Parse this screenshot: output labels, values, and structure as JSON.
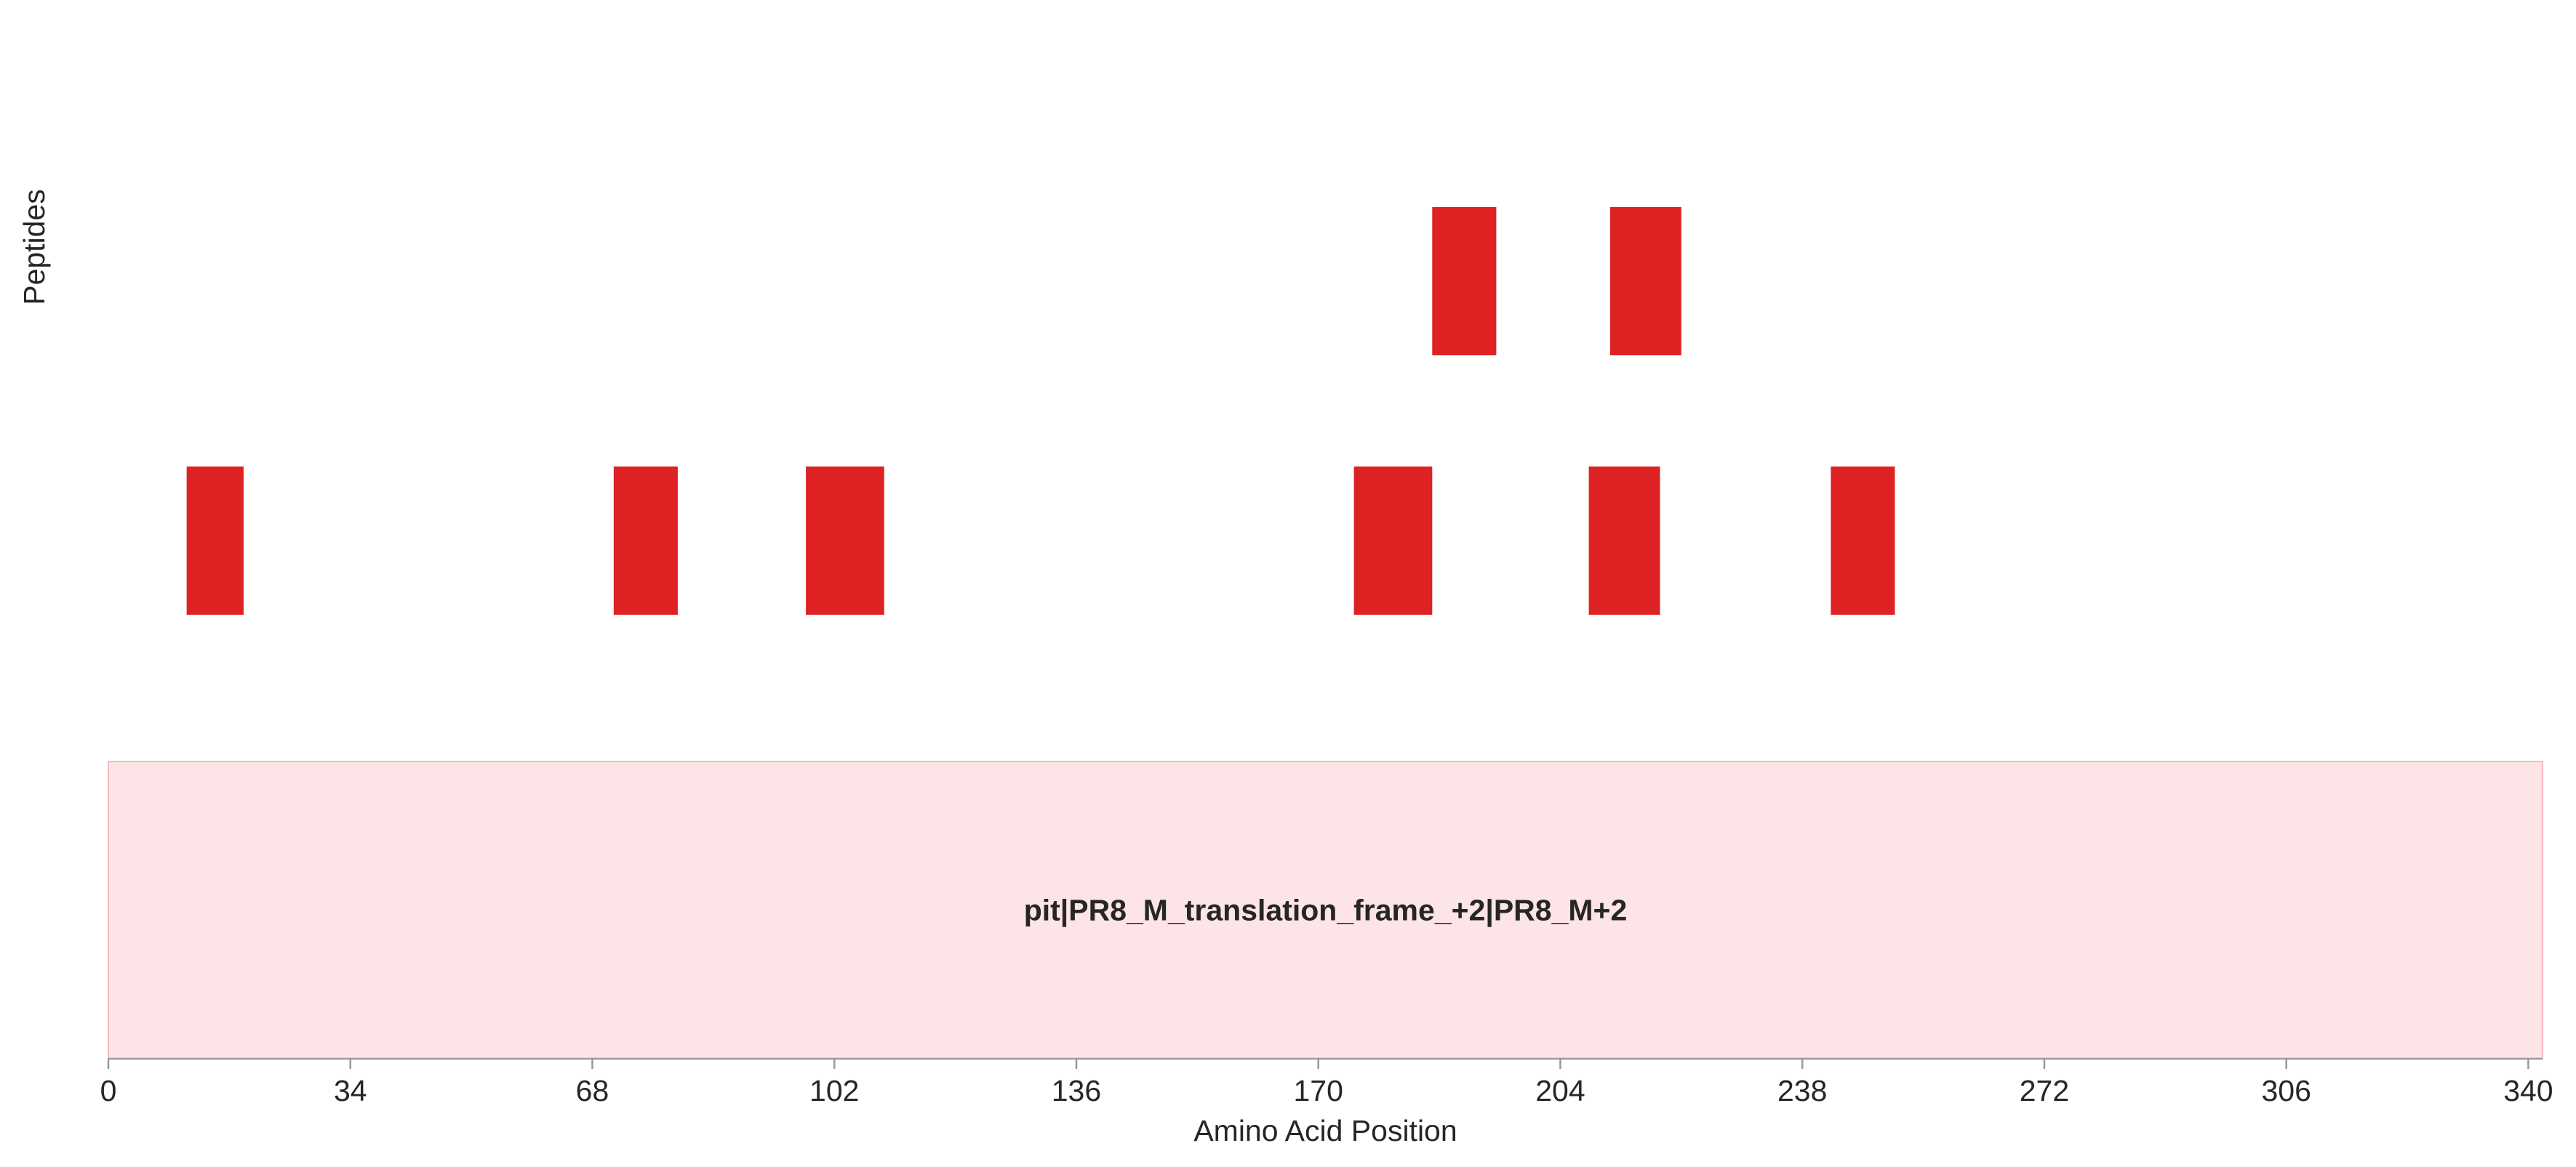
{
  "colors": {
    "peptide": "#de2224",
    "protein_fill": "#fde4e6",
    "protein_edge": "#f7b9bf",
    "axis": "#999999",
    "text": "#262626"
  },
  "chart_data": {
    "type": "bar",
    "orientation": "horizontal-intervals",
    "xlabel": "Amino Acid Position",
    "ylabel": "Peptides",
    "xlim": [
      0,
      342
    ],
    "xticks": [
      0,
      34,
      68,
      102,
      136,
      170,
      204,
      238,
      272,
      306,
      340
    ],
    "grid": false,
    "legend": "none",
    "protein": {
      "label": "pit|PR8_M_translation_frame_+2|PR8_M+2",
      "start": 0,
      "end": 342
    },
    "peptide_rows": [
      {
        "row": 2,
        "peptides": [
          {
            "start": 186,
            "end": 195
          },
          {
            "start": 211,
            "end": 221
          }
        ]
      },
      {
        "row": 1,
        "peptides": [
          {
            "start": 11,
            "end": 19
          },
          {
            "start": 71,
            "end": 80
          },
          {
            "start": 98,
            "end": 109
          },
          {
            "start": 175,
            "end": 186
          },
          {
            "start": 208,
            "end": 218
          },
          {
            "start": 242,
            "end": 251
          }
        ]
      }
    ]
  }
}
